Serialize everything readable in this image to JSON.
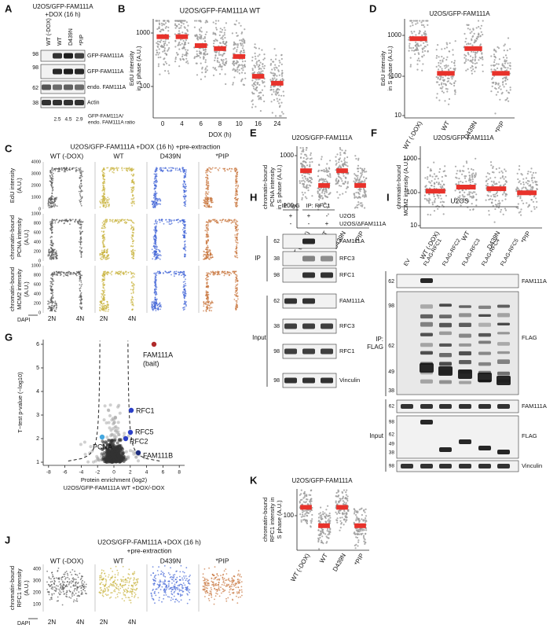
{
  "panel_labels": [
    "A",
    "B",
    "C",
    "D",
    "E",
    "F",
    "G",
    "H",
    "I",
    "J",
    "K"
  ],
  "a": {
    "title": "U2OS/GFP-FAM111A",
    "subtitle": "+DOX (16 h)",
    "lanes": [
      "WT (-DOX)",
      "WT",
      "D439N",
      "*PIP"
    ],
    "markers": [
      98,
      98,
      62,
      38
    ],
    "bands": [
      "GFP-FAM111A",
      "GFP-FAM111A",
      "endo. FAM111A",
      "Actin"
    ],
    "ratios": [
      2.5,
      4.5,
      2.9
    ],
    "ratio_label": [
      "GFP-FAM111A/",
      "endo. FAM111A ratio"
    ]
  },
  "b": {
    "title": "U2OS/GFP-FAM111A WT",
    "ylabel": [
      "EdU intensity",
      "in S phase (A.U.)"
    ],
    "yticks": [
      1000,
      100
    ],
    "categories": [
      0,
      4,
      6,
      8,
      10,
      16,
      24
    ],
    "xlabel": "DOX (h)"
  },
  "c": {
    "title": "U2OS/GFP-FAM111A +DOX (16 h) +pre-extraction",
    "columns": [
      "WT (-DOX)",
      "WT",
      "D439N",
      "*PIP"
    ],
    "rows": [
      {
        "ylabel": [
          "EdU intensity",
          "(A.U.)"
        ],
        "yticks": [
          4000,
          3000,
          2000,
          1000,
          0
        ]
      },
      {
        "ylabel": [
          "chromatin-bound",
          "PCNA intensity",
          "(A.U.)"
        ],
        "yticks": [
          1000,
          800,
          600,
          400,
          200,
          0
        ]
      },
      {
        "ylabel": [
          "chromatin-bound",
          "MCM2 intensity",
          "(A.U.)"
        ],
        "yticks": [
          1000,
          800,
          600,
          400,
          200,
          0
        ]
      }
    ],
    "xticks": [
      "2N",
      "4N"
    ],
    "xlabel": "DAPI"
  },
  "d": {
    "title": "U2OS/GFP-FAM111A",
    "ylabel": [
      "EdU intensity",
      "in S phase (A.U.)"
    ],
    "yticks": [
      1000,
      100,
      10
    ],
    "categories": [
      "WT (-DOX)",
      "WT",
      "D439N",
      "*PIP"
    ]
  },
  "e": {
    "title": "U2OS/GFP-FAM111A",
    "ylabel": [
      "chromatin-bound",
      "PCNA intensity",
      "in S phase (A.U.)"
    ],
    "yticks": [
      1000,
      100
    ],
    "categories": [
      "WT (-DOX)",
      "WT",
      "D439N",
      "*PIP"
    ]
  },
  "f": {
    "title": "U2OS/GFP-FAM111A",
    "ylabel": [
      "chromatin-bound",
      "MCM2 intensity (A.U.)"
    ],
    "yticks": [
      1000,
      100,
      10
    ],
    "categories": [
      "WT (-DOX)",
      "WT",
      "D439N",
      "*PIP"
    ]
  },
  "g": {
    "ylabel": "T−test p-value (−log10)",
    "yticks": [
      1,
      2,
      3,
      4,
      5,
      6
    ],
    "xticks": [
      -8,
      -6,
      -4,
      -2,
      0,
      2,
      4,
      6,
      8
    ],
    "xlabel": "Protein enrichment (log2)",
    "subtitle": "U2OS/GFP-FAM111A WT +DOX/-DOX",
    "labels": [
      "FAM111A",
      "(bait)",
      "RFC1",
      "RFC5",
      "RFC2",
      "FAM111B",
      "PCNA"
    ]
  },
  "h": {
    "headers": [
      "IP: IgG",
      "IP: RFC1"
    ],
    "conditions": [
      {
        "name": "U2OS",
        "signs": [
          "+",
          "+",
          "-"
        ]
      },
      {
        "name": "U2OS/ΔFAM111A",
        "signs": [
          "-",
          "-",
          "+"
        ]
      }
    ],
    "sections": [
      "IP",
      "Input"
    ],
    "rows": [
      {
        "marker": 62,
        "band": "FAM111A"
      },
      {
        "marker": 38,
        "band": "RFC3"
      },
      {
        "marker": 98,
        "band": "RFC1"
      },
      {
        "marker": 62,
        "band": "FAM111A"
      },
      {
        "marker": 38,
        "band": "RFC3"
      },
      {
        "marker": 98,
        "band": "RFC1"
      },
      {
        "marker": 98,
        "band": "Vinculin"
      }
    ]
  },
  "i": {
    "title": "U2OS",
    "lanes": [
      "EV",
      "FLAG-RFC1",
      "FLAG-RFC2",
      "FLAG-RFC3",
      "FLAG-RFC4",
      "FLAG-RFC5"
    ],
    "ip_label": [
      "IP:",
      "FLAG"
    ],
    "input_label": "Input",
    "ip_markers": [
      62,
      98,
      62,
      49,
      38
    ],
    "input_markers": [
      62,
      98,
      62,
      49,
      38,
      98
    ],
    "ip_bands": [
      "FAM111A",
      "FLAG"
    ],
    "input_bands": [
      "FAM111A",
      "FLAG",
      "Vinculin"
    ]
  },
  "j": {
    "title": [
      "U2OS/GFP-FAM111A +DOX (16 h)",
      "+pre-extraction"
    ],
    "columns": [
      "WT (-DOX)",
      "WT",
      "D439N",
      "*PIP"
    ],
    "ylabel": [
      "chromatin-bound",
      "RFC1 intensity",
      "(A.U.)"
    ],
    "yticks": [
      400,
      300,
      200,
      100
    ],
    "xticks": [
      "2N",
      "4N"
    ],
    "xlabel": "DAPI"
  },
  "k": {
    "title": "U2OS/GFP-FAM111A",
    "ylabel": [
      "chromatin-bound",
      "RFC1 intensity in",
      "S phase (A.U.)"
    ],
    "yticks": [
      100
    ],
    "categories": [
      "WT (-DOX)",
      "WT",
      "D439N",
      "*PIP"
    ]
  }
}
